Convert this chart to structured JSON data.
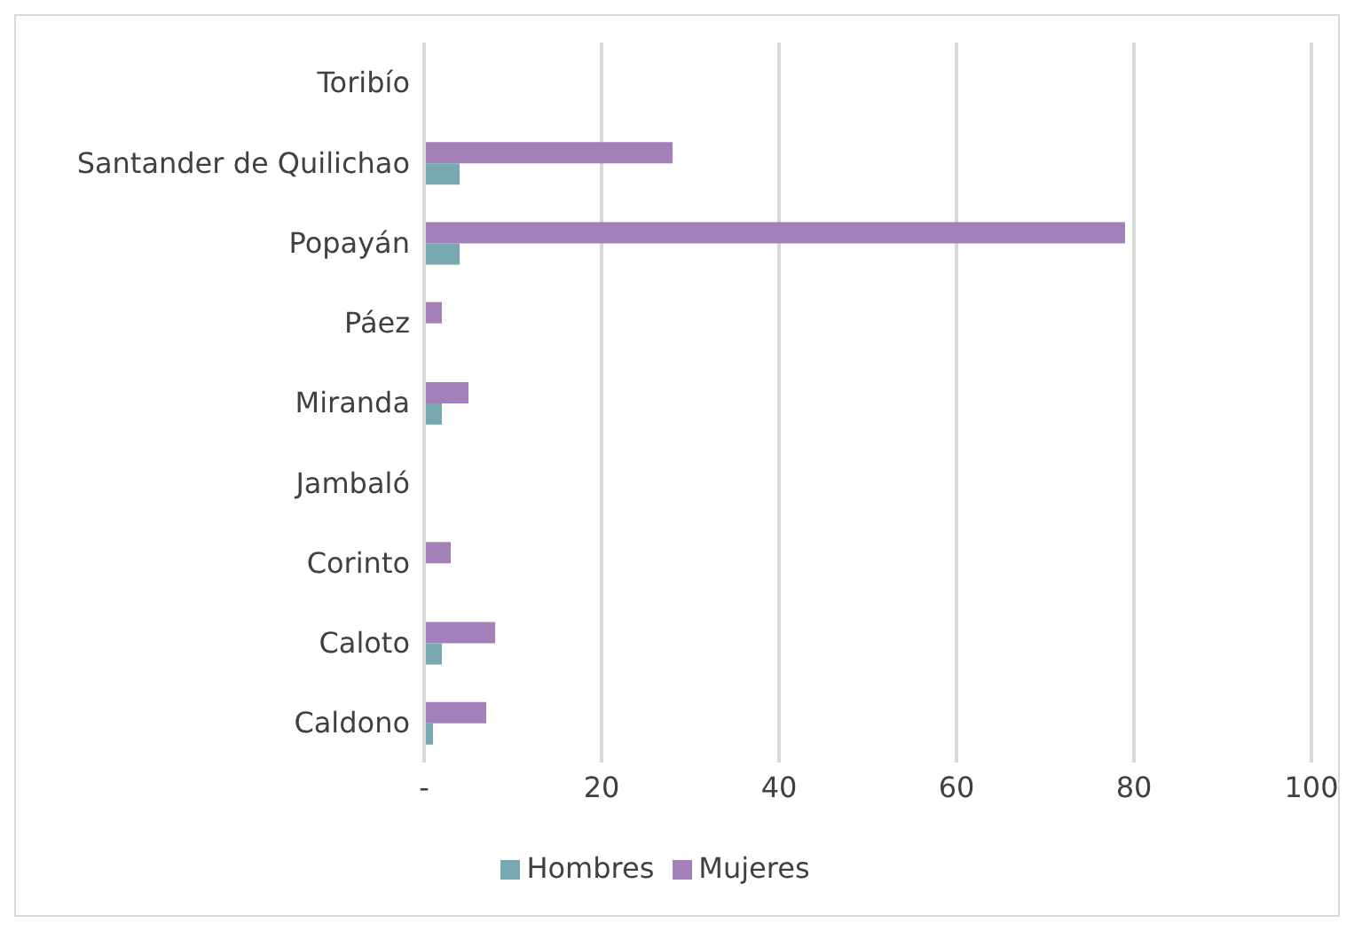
{
  "chart_data": {
    "type": "bar",
    "orientation": "horizontal",
    "categories": [
      "Toribío",
      "Santander de Quilichao",
      "Popayán",
      "Páez",
      "Miranda",
      "Jambaló",
      "Corinto",
      "Caloto",
      "Caldono"
    ],
    "series": [
      {
        "name": "Mujeres",
        "color": "#a380b9",
        "values": [
          0,
          28,
          79,
          2,
          5,
          0,
          3,
          8,
          7
        ]
      },
      {
        "name": "Hombres",
        "color": "#78a9b0",
        "values": [
          0,
          4,
          4,
          0,
          2,
          0,
          0,
          2,
          1
        ]
      }
    ],
    "xlim": [
      0,
      100
    ],
    "xticks": [
      {
        "value": 0,
        "label": "-"
      },
      20,
      40,
      60,
      80,
      100
    ],
    "grid": "x",
    "legend": "bottom"
  }
}
